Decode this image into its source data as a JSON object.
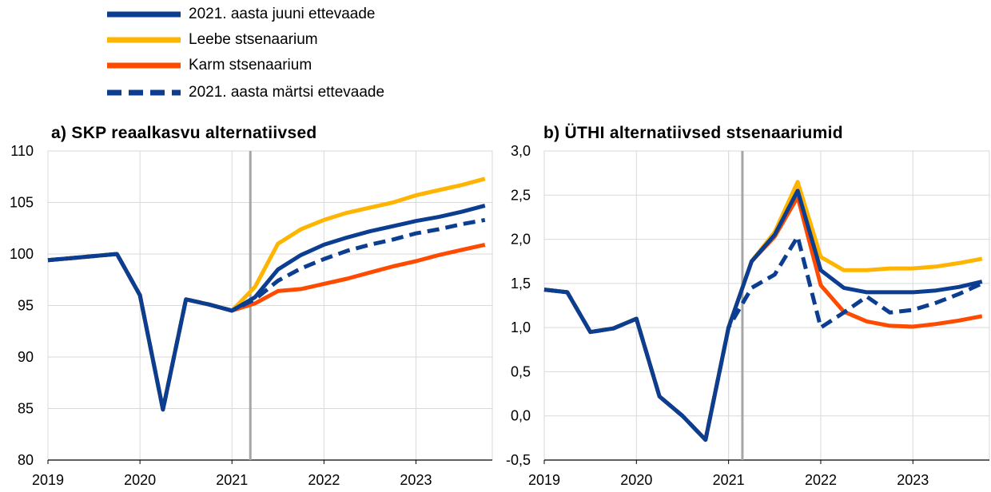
{
  "legend": [
    {
      "label": "2021. aasta juuni ettevaade",
      "color": "#0b3d91",
      "dash": false
    },
    {
      "label": "Leebe stsenaarium",
      "color": "#ffb400",
      "dash": false
    },
    {
      "label": "Karm stsenaarium",
      "color": "#ff4b00",
      "dash": false
    },
    {
      "label": "2021. aasta märtsi ettevaade",
      "color": "#0b3d91",
      "dash": true
    }
  ],
  "chart_data": [
    {
      "type": "line",
      "title": "a) SKP reaalkasvu alternatiivsed",
      "xlabel": "",
      "ylabel": "",
      "x": [
        2019.0,
        2019.25,
        2019.5,
        2019.75,
        2020.0,
        2020.25,
        2020.5,
        2020.75,
        2021.0,
        2021.25,
        2021.5,
        2021.75,
        2022.0,
        2022.25,
        2022.5,
        2022.75,
        2023.0,
        2023.25,
        2023.5,
        2023.75
      ],
      "xticks": [
        "2019",
        "2020",
        "2021",
        "2022",
        "2023"
      ],
      "xtick_values": [
        2019,
        2020,
        2021,
        2022,
        2023
      ],
      "xlim": [
        2019.0,
        2023.83
      ],
      "ylim": [
        80,
        110
      ],
      "yticks": [
        "80",
        "85",
        "90",
        "95",
        "100",
        "105",
        "110"
      ],
      "ytick_values": [
        80,
        85,
        90,
        95,
        100,
        105,
        110
      ],
      "vline": 2021.2,
      "grid": true,
      "series": [
        {
          "name": "Karm stsenaarium",
          "color": "#ff4b00",
          "dash": false,
          "values": [
            99.4,
            99.6,
            99.8,
            100.0,
            96.0,
            84.9,
            95.6,
            95.1,
            94.5,
            95.2,
            96.4,
            96.6,
            97.1,
            97.6,
            98.2,
            98.8,
            99.3,
            99.9,
            100.4,
            100.9
          ]
        },
        {
          "name": "Leebe stsenaarium",
          "color": "#ffb400",
          "dash": false,
          "values": [
            99.4,
            99.6,
            99.8,
            100.0,
            96.0,
            84.9,
            95.6,
            95.1,
            94.5,
            96.8,
            101.0,
            102.4,
            103.3,
            104.0,
            104.5,
            105.0,
            105.7,
            106.2,
            106.7,
            107.3
          ]
        },
        {
          "name": "2021. aasta juuni ettevaade",
          "color": "#0b3d91",
          "dash": false,
          "values": [
            99.4,
            99.6,
            99.8,
            100.0,
            96.0,
            84.9,
            95.6,
            95.1,
            94.5,
            95.8,
            98.5,
            99.9,
            100.9,
            101.6,
            102.2,
            102.7,
            103.2,
            103.6,
            104.1,
            104.7
          ]
        },
        {
          "name": "2021. aasta märtsi ettevaade",
          "color": "#0b3d91",
          "dash": true,
          "values": [
            99.4,
            99.6,
            99.8,
            100.0,
            96.0,
            84.9,
            95.6,
            95.1,
            94.5,
            95.6,
            97.4,
            98.6,
            99.5,
            100.3,
            100.9,
            101.4,
            102.0,
            102.4,
            102.9,
            103.3
          ]
        }
      ]
    },
    {
      "type": "line",
      "title": "b) ÜTHI alternatiivsed stsenaariumid",
      "xlabel": "",
      "ylabel": "",
      "x": [
        2019.0,
        2019.25,
        2019.5,
        2019.75,
        2020.0,
        2020.25,
        2020.5,
        2020.75,
        2021.0,
        2021.25,
        2021.5,
        2021.75,
        2022.0,
        2022.25,
        2022.5,
        2022.75,
        2023.0,
        2023.25,
        2023.5,
        2023.75
      ],
      "xticks": [
        "2019",
        "2020",
        "2021",
        "2022",
        "2023"
      ],
      "xtick_values": [
        2019,
        2020,
        2021,
        2022,
        2023
      ],
      "xlim": [
        2019.0,
        2023.83
      ],
      "ylim": [
        -0.5,
        3.0
      ],
      "yticks": [
        "-0,5",
        "0,0",
        "0,5",
        "1,0",
        "1,5",
        "2,0",
        "2,5",
        "3,0"
      ],
      "ytick_values": [
        -0.5,
        0.0,
        0.5,
        1.0,
        1.5,
        2.0,
        2.5,
        3.0
      ],
      "vline": 2021.15,
      "vline_light": 2021.0,
      "grid": true,
      "series": [
        {
          "name": "Karm stsenaarium",
          "color": "#ff4b00",
          "dash": false,
          "values": [
            1.43,
            1.4,
            0.95,
            0.99,
            1.1,
            0.22,
            0.0,
            -0.27,
            1.0,
            1.75,
            2.03,
            2.48,
            1.48,
            1.18,
            1.07,
            1.02,
            1.01,
            1.04,
            1.08,
            1.13
          ]
        },
        {
          "name": "Leebe stsenaarium",
          "color": "#ffb400",
          "dash": false,
          "values": [
            1.43,
            1.4,
            0.95,
            0.99,
            1.1,
            0.22,
            0.0,
            -0.27,
            1.0,
            1.75,
            2.08,
            2.65,
            1.8,
            1.65,
            1.65,
            1.67,
            1.67,
            1.69,
            1.73,
            1.78
          ]
        },
        {
          "name": "2021. aasta juuni ettevaade",
          "color": "#0b3d91",
          "dash": false,
          "values": [
            1.43,
            1.4,
            0.95,
            0.99,
            1.1,
            0.22,
            0.0,
            -0.27,
            1.0,
            1.75,
            2.05,
            2.55,
            1.65,
            1.45,
            1.4,
            1.4,
            1.4,
            1.42,
            1.46,
            1.52
          ]
        },
        {
          "name": "2021. aasta märtsi ettevaade",
          "color": "#0b3d91",
          "dash": true,
          "values": [
            1.43,
            1.4,
            0.95,
            0.99,
            1.1,
            0.22,
            0.0,
            -0.27,
            1.0,
            1.45,
            1.6,
            2.03,
            1.0,
            1.17,
            1.35,
            1.17,
            1.2,
            1.28,
            1.38,
            1.5
          ]
        }
      ]
    }
  ]
}
